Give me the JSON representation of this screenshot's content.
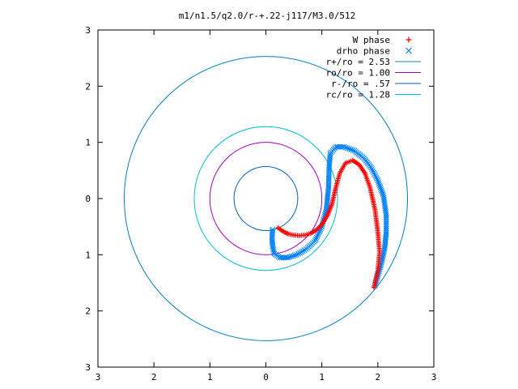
{
  "chart_data": {
    "type": "scatter",
    "title": "m1/n1.5/q2.0/r-+.22-j117/M3.0/512",
    "xlabel": "",
    "ylabel": "",
    "xlim": [
      -3,
      3
    ],
    "ylim": [
      -3,
      3
    ],
    "x_tick_labels": [
      "3",
      "2",
      "1",
      "0",
      "1",
      "2",
      "3"
    ],
    "y_tick_labels": [
      "3",
      "2",
      "1",
      "0",
      "1",
      "2",
      "3"
    ],
    "grid": false,
    "legend_position": "top-right",
    "series": [
      {
        "name": "W phase",
        "kind": "points",
        "marker": "+",
        "color": "#ff0000",
        "points": [
          [
            0.22,
            -0.52
          ],
          [
            0.3,
            -0.58
          ],
          [
            0.4,
            -0.63
          ],
          [
            0.5,
            -0.65
          ],
          [
            0.6,
            -0.66
          ],
          [
            0.7,
            -0.65
          ],
          [
            0.8,
            -0.62
          ],
          [
            0.9,
            -0.56
          ],
          [
            1.0,
            -0.46
          ],
          [
            1.1,
            -0.3
          ],
          [
            1.18,
            -0.1
          ],
          [
            1.25,
            0.2
          ],
          [
            1.32,
            0.45
          ],
          [
            1.42,
            0.63
          ],
          [
            1.55,
            0.68
          ],
          [
            1.67,
            0.6
          ],
          [
            1.77,
            0.45
          ],
          [
            1.86,
            0.2
          ],
          [
            1.95,
            -0.2
          ],
          [
            2.0,
            -0.6
          ],
          [
            2.03,
            -0.95
          ],
          [
            2.0,
            -1.28
          ],
          [
            1.93,
            -1.58
          ]
        ]
      },
      {
        "name": "drho phase",
        "kind": "points",
        "marker": "x",
        "color": "#0080ff",
        "points": [
          [
            0.12,
            -0.55
          ],
          [
            0.11,
            -0.7
          ],
          [
            0.12,
            -0.85
          ],
          [
            0.15,
            -0.98
          ],
          [
            0.25,
            -1.05
          ],
          [
            0.4,
            -1.05
          ],
          [
            0.55,
            -1.0
          ],
          [
            0.72,
            -0.9
          ],
          [
            0.88,
            -0.75
          ],
          [
            1.0,
            -0.5
          ],
          [
            1.08,
            -0.2
          ],
          [
            1.12,
            0.2
          ],
          [
            1.13,
            0.55
          ],
          [
            1.15,
            0.8
          ],
          [
            1.25,
            0.92
          ],
          [
            1.4,
            0.92
          ],
          [
            1.58,
            0.85
          ],
          [
            1.75,
            0.72
          ],
          [
            1.88,
            0.55
          ],
          [
            2.0,
            0.32
          ],
          [
            2.1,
            0.05
          ],
          [
            2.15,
            -0.3
          ],
          [
            2.15,
            -0.6
          ],
          [
            2.12,
            -0.9
          ],
          [
            2.05,
            -1.2
          ],
          [
            1.95,
            -1.55
          ]
        ]
      },
      {
        "name": "r+/ro = 2.53",
        "kind": "circle",
        "radius": 2.53,
        "color": "#0080c0"
      },
      {
        "name": "ro/ro = 1.00",
        "kind": "circle",
        "radius": 1.0,
        "color": "#a000c0"
      },
      {
        "name": "r-/ro = .57",
        "kind": "circle",
        "radius": 0.57,
        "color": "#0060c0"
      },
      {
        "name": "rc/ro = 1.28",
        "kind": "circle",
        "radius": 1.28,
        "color": "#00c0d0"
      }
    ]
  }
}
